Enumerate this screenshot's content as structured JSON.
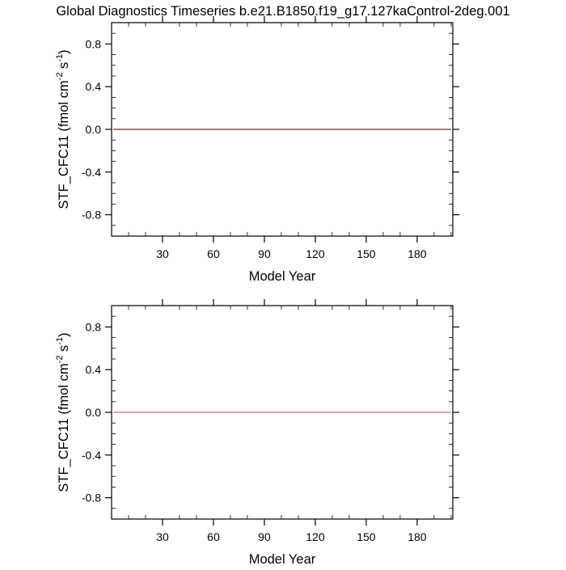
{
  "title": "Global Diagnostics Timeseries b.e21.B1850.f19_g17.127kaControl-2deg.001",
  "chart_data": [
    {
      "type": "line",
      "xlabel": "Model Year",
      "ylabel": "STF_CFC11 (fmol cm",
      "ylabel_sup1": "-2",
      "ylabel_mid": " s",
      "ylabel_sup2": "-1",
      "ylabel_end": ")",
      "xlim": [
        0,
        201
      ],
      "ylim": [
        -1,
        1
      ],
      "xticks": [
        30,
        60,
        90,
        120,
        150,
        180
      ],
      "yticks": [
        0.8,
        0.4,
        0.0,
        -0.4,
        -0.8
      ],
      "ytick_labels": [
        "0.8",
        "0.4",
        "0.0",
        "-0.4",
        "-0.8"
      ],
      "grid": false,
      "series": [
        {
          "x": [
            1,
            200
          ],
          "y": [
            0,
            0
          ],
          "color": "#6e2a2a"
        }
      ]
    },
    {
      "type": "line",
      "xlabel": "Model Year",
      "ylabel": "STF_CFC11 (fmol cm",
      "ylabel_sup1": "-2",
      "ylabel_mid": " s",
      "ylabel_sup2": "-1",
      "ylabel_end": ")",
      "xlim": [
        0,
        201
      ],
      "ylim": [
        -1,
        1
      ],
      "xticks": [
        30,
        60,
        90,
        120,
        150,
        180
      ],
      "yticks": [
        0.8,
        0.4,
        0.0,
        -0.4,
        -0.8
      ],
      "ytick_labels": [
        "0.8",
        "0.4",
        "0.0",
        "-0.4",
        "-0.8"
      ],
      "grid": false,
      "series": [
        {
          "x": [
            1,
            200
          ],
          "y": [
            0,
            0
          ],
          "color": "#c46a6a"
        }
      ]
    }
  ]
}
